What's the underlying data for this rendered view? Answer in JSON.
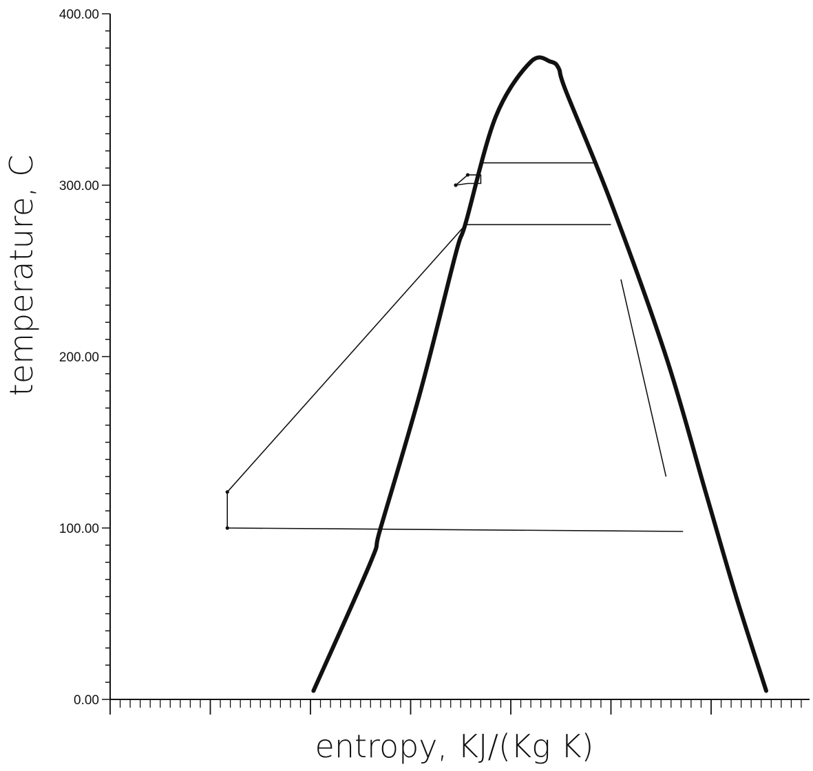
{
  "chart_data": {
    "type": "line",
    "title": "",
    "xlabel": "entropy, KJ/(Kg K)",
    "ylabel": "temperature, C",
    "ylim": [
      0,
      400
    ],
    "xlim": [
      0,
      10
    ],
    "y_ticks": [
      0,
      100,
      200,
      300,
      400
    ],
    "y_tick_labels": [
      "0.00",
      "100.00",
      "200.00",
      "300.00",
      "400.00"
    ],
    "y_minor_step": 10,
    "x_major_ticks": [
      0,
      1,
      2,
      3,
      4,
      5,
      6,
      7
    ],
    "x_minor_step": 0.1,
    "grid": false,
    "series": [
      {
        "kind": "saturation-dome",
        "x": [
          2.03,
          2.6,
          2.7,
          3.1,
          3.45,
          3.55,
          3.85,
          4.2,
          4.4,
          4.48,
          4.55,
          5.0,
          5.55,
          5.95,
          6.25,
          6.55
        ],
        "y": [
          5,
          80,
          100,
          180,
          260,
          278,
          340,
          372,
          372,
          368,
          355,
          290,
          200,
          120,
          60,
          5
        ],
        "color": "#111111"
      },
      {
        "kind": "cycle-path",
        "x": [
          1.17,
          1.17,
          3.55,
          5.0
        ],
        "y": [
          100,
          121,
          277,
          277
        ],
        "color": "#111111"
      },
      {
        "kind": "isotherm",
        "x": [
          1.17,
          5.72
        ],
        "y": [
          100,
          98
        ],
        "color": "#111111"
      },
      {
        "kind": "isotherm",
        "x": [
          3.7,
          4.85
        ],
        "y": [
          313,
          313
        ],
        "color": "#111111"
      },
      {
        "kind": "expansion-line",
        "x": [
          5.1,
          5.55
        ],
        "y": [
          245,
          130
        ],
        "color": "#111111"
      },
      {
        "kind": "small-cycle",
        "x": [
          3.45,
          3.57,
          3.7,
          3.7,
          3.57,
          3.45
        ],
        "y": [
          300,
          306,
          306,
          301,
          301,
          300
        ],
        "color": "#111111"
      }
    ],
    "markers": [
      {
        "x": 1.17,
        "y": 100
      },
      {
        "x": 1.17,
        "y": 121
      },
      {
        "x": 3.45,
        "y": 300
      },
      {
        "x": 3.57,
        "y": 306
      }
    ]
  }
}
